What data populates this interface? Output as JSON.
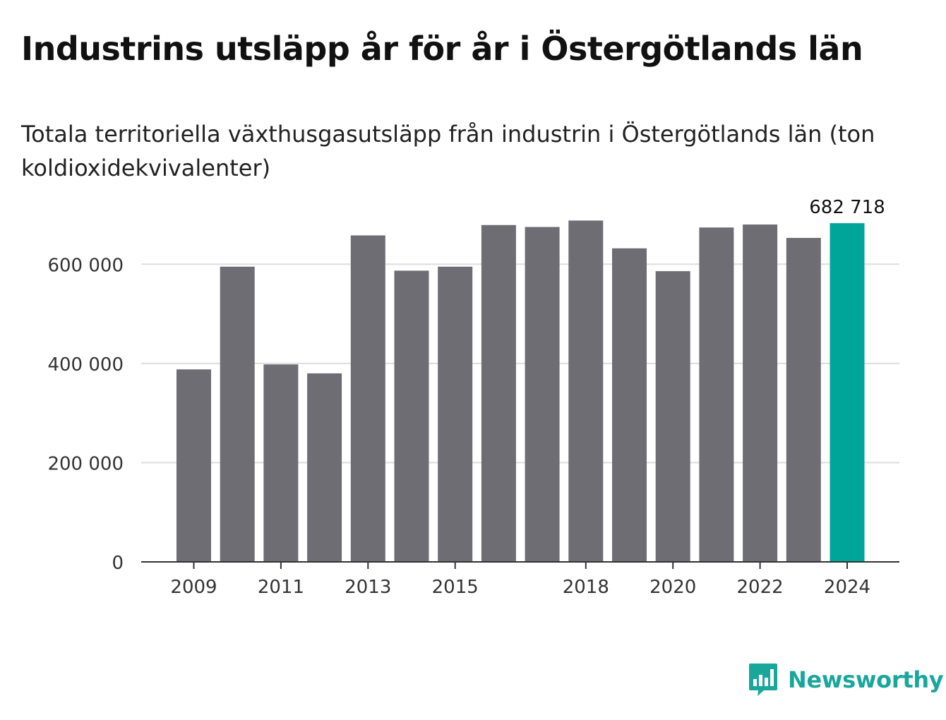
{
  "header": {
    "title": "Industrins utsläpp år för år i Östergötlands län",
    "subtitle": "Totala territoriella växthusgasutsläpp från industrin i Östergötlands län (ton koldioxidekvivalenter)"
  },
  "brand": {
    "name": "Newsworthy",
    "icon": "newsworthy-logo-icon",
    "color": "#1aa79b"
  },
  "colors": {
    "bar": "#6e6d74",
    "highlight": "#00a59a",
    "grid": "#dddddd",
    "axis": "#333333",
    "tick_text": "#333333"
  },
  "chart_data": {
    "type": "bar",
    "title": "Industrins utsläpp år för år i Östergötlands län",
    "subtitle": "Totala territoriella växthusgasutsläpp från industrin i Östergötlands län (ton koldioxidekvivalenter)",
    "categories": [
      "2009",
      "2010",
      "2011",
      "2012",
      "2013",
      "2014",
      "2015",
      "2016",
      "2017",
      "2018",
      "2019",
      "2020",
      "2021",
      "2022",
      "2023",
      "2024"
    ],
    "values": [
      388000,
      595000,
      398000,
      380000,
      658000,
      587000,
      595000,
      679000,
      675000,
      688000,
      632000,
      586000,
      674000,
      680000,
      653000,
      682718
    ],
    "highlight_index": 15,
    "annotation": {
      "index": 15,
      "text": "682 718"
    },
    "x_tick_labels": [
      "2009",
      "2011",
      "2013",
      "2015",
      "2018",
      "2020",
      "2022",
      "2024"
    ],
    "y_ticks": [
      0,
      200000,
      400000,
      600000
    ],
    "y_tick_labels": [
      "0",
      "200 000",
      "400 000",
      "600 000"
    ],
    "ylim": [
      0,
      700000
    ],
    "xlabel": "",
    "ylabel": "",
    "grid": true,
    "legend": "none"
  }
}
